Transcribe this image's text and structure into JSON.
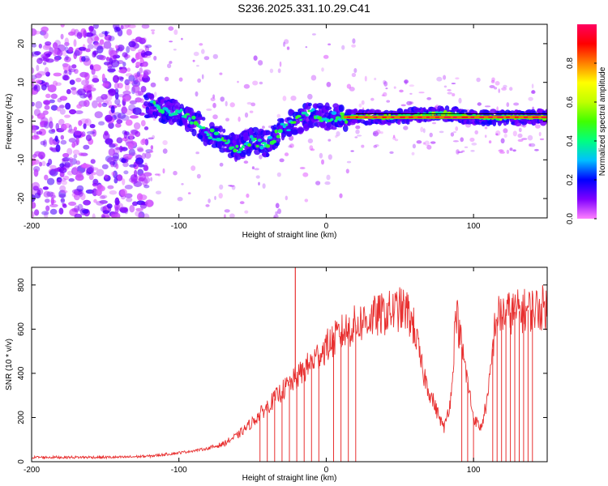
{
  "title": "S236.2025.331.10.29.C41",
  "chart_data": [
    {
      "type": "heatmap",
      "name": "spectrogram",
      "xlabel": "Height of straight line (km)",
      "ylabel": "Frequency (Hz)",
      "xlim": [
        -200,
        150
      ],
      "ylim": [
        -25,
        25
      ],
      "xticks": [
        -200,
        -100,
        0,
        100
      ],
      "xtick_labels": [
        "-200",
        "-100",
        "0",
        "100"
      ],
      "yticks": [
        -20,
        -10,
        0,
        10,
        20
      ],
      "ytick_labels": [
        "-20",
        "-10",
        "0",
        "10",
        "20"
      ],
      "colorbar": {
        "label": "Normalized spectral amplitude",
        "range": [
          0,
          1
        ],
        "ticks": [
          0.0,
          0.2,
          0.4,
          0.6,
          0.8
        ],
        "tick_labels": [
          "0.0",
          "0.2",
          "0.4",
          "0.6",
          "0.8"
        ],
        "colors": [
          "#ff80ff",
          "#8000ff",
          "#0000ff",
          "#00c0ff",
          "#00ff80",
          "#40ff00",
          "#c0ff00",
          "#ffff00",
          "#ff8000",
          "#ff0000",
          "#ff0060"
        ]
      },
      "ridge_track": {
        "x": [
          -120,
          -110,
          -100,
          -90,
          -80,
          -70,
          -60,
          -50,
          -40,
          -30,
          -20,
          -10,
          0,
          10,
          20,
          40,
          60,
          80,
          90,
          100,
          110,
          120,
          150
        ],
        "y": [
          4,
          3,
          2,
          0,
          -3,
          -5,
          -7,
          -5,
          -6,
          -2,
          0,
          2,
          1,
          1,
          1,
          1,
          1.5,
          2,
          1.5,
          1,
          1,
          1,
          1
        ]
      },
      "noise_region_x": [
        -200,
        -120
      ]
    },
    {
      "type": "line",
      "name": "snr",
      "xlabel": "Height of straight line (km)",
      "ylabel": "SNR (10 * v/v)",
      "xlim": [
        -200,
        150
      ],
      "ylim": [
        0,
        880
      ],
      "xticks": [
        -200,
        -100,
        0,
        100
      ],
      "xtick_labels": [
        "-200",
        "-100",
        "0",
        "100"
      ],
      "yticks": [
        0,
        200,
        400,
        600,
        800
      ],
      "ytick_labels": [
        "0",
        "200",
        "400",
        "600",
        "800"
      ],
      "series": [
        {
          "name": "SNR",
          "color": "#e83030",
          "x": [
            -200,
            -180,
            -160,
            -140,
            -120,
            -100,
            -90,
            -80,
            -70,
            -60,
            -50,
            -40,
            -30,
            -20,
            -10,
            0,
            10,
            20,
            30,
            40,
            50,
            55,
            60,
            65,
            70,
            75,
            80,
            85,
            88,
            90,
            95,
            100,
            105,
            110,
            115,
            120,
            130,
            140,
            150
          ],
          "y": [
            20,
            20,
            20,
            20,
            25,
            40,
            50,
            60,
            80,
            120,
            180,
            250,
            320,
            380,
            450,
            520,
            580,
            620,
            650,
            670,
            690,
            680,
            600,
            420,
            320,
            230,
            150,
            300,
            700,
            600,
            400,
            200,
            150,
            300,
            650,
            670,
            680,
            690,
            700
          ]
        }
      ],
      "dropouts": {
        "x": [
          -45,
          -40,
          -35,
          -30,
          -25,
          -20,
          -15,
          -10,
          -5,
          5,
          10,
          15,
          20,
          92,
          96,
          100,
          113,
          116,
          119,
          122,
          125,
          128,
          131,
          134,
          137,
          140
        ],
        "y": [
          0,
          0,
          0,
          0,
          0,
          0,
          0,
          0,
          0,
          0,
          0,
          0,
          0,
          0,
          0,
          0,
          0,
          0,
          0,
          0,
          0,
          0,
          0,
          0,
          0,
          0
        ]
      },
      "spike": {
        "x": -21,
        "y": 880
      }
    }
  ]
}
